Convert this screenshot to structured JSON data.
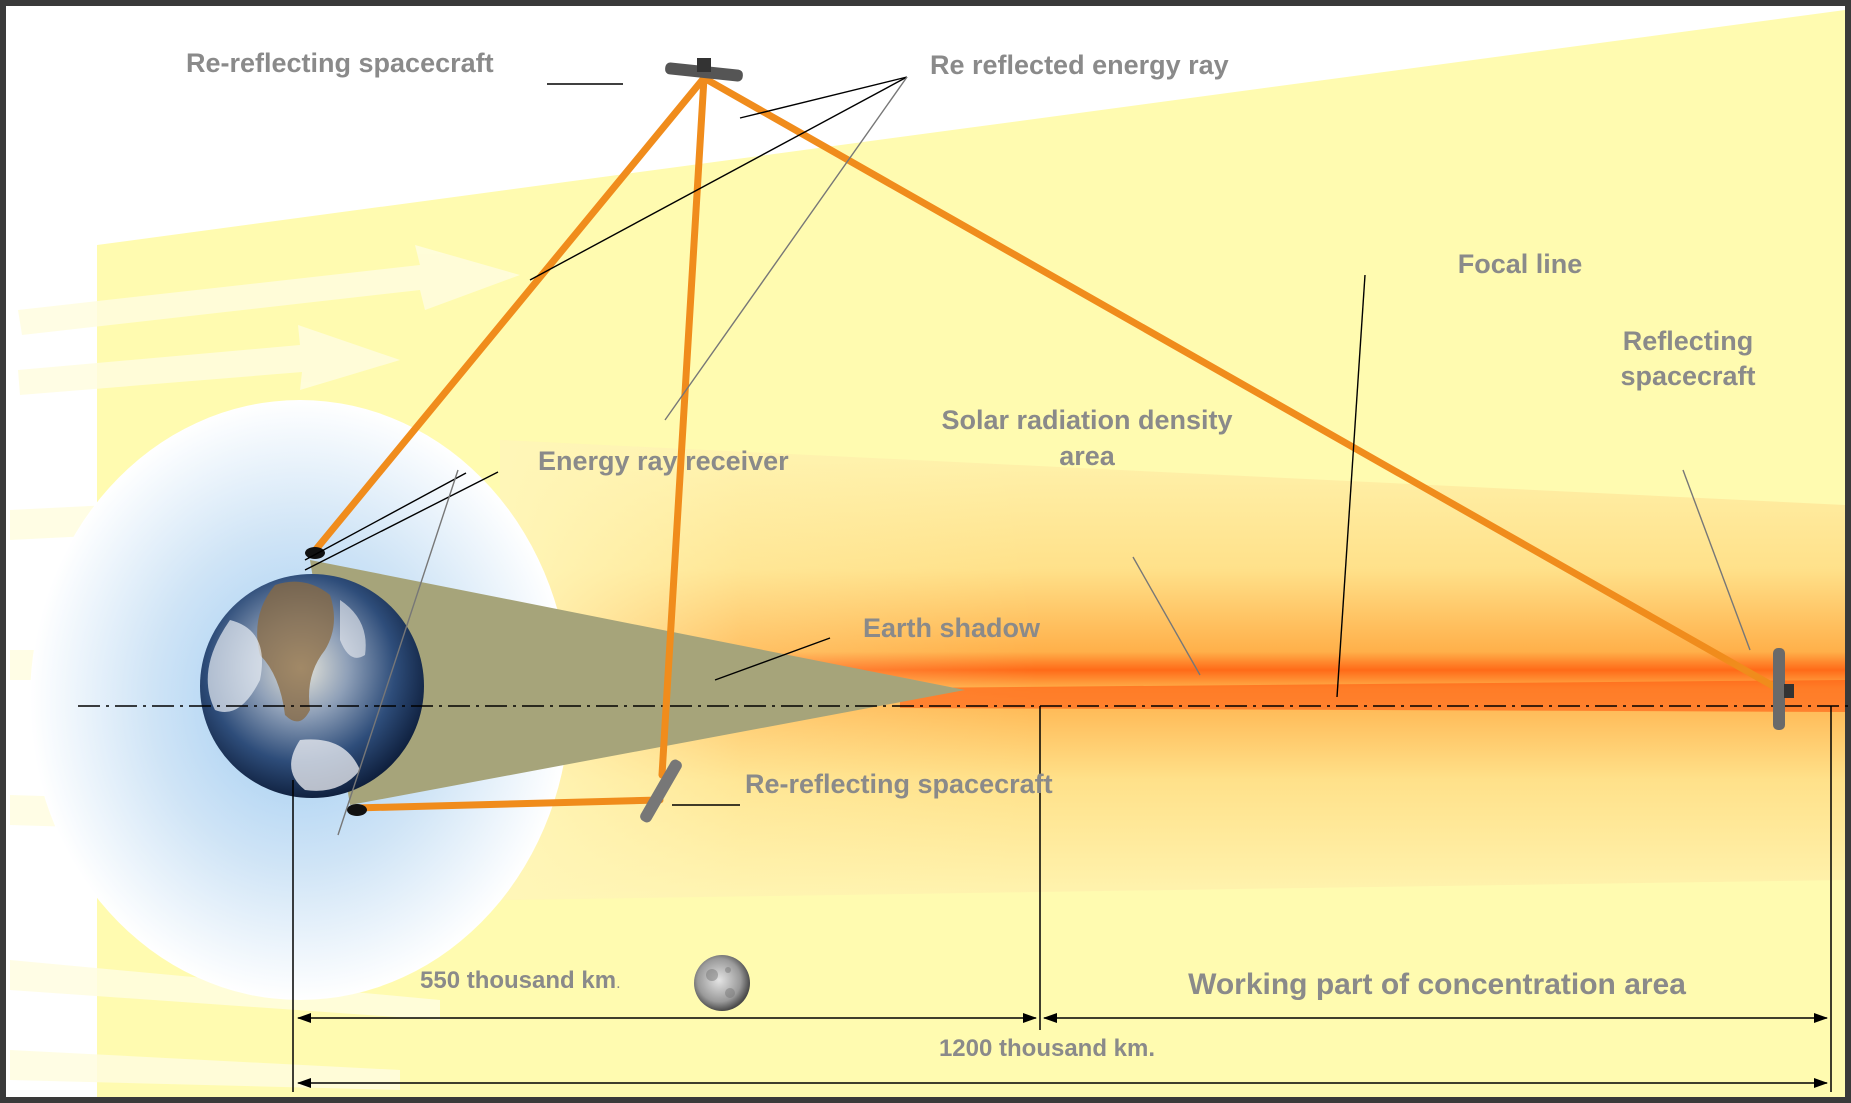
{
  "labels": {
    "rereflecting_top": "Re-reflecting spacecraft",
    "rereflected_ray": "Re reflected energy ray",
    "focal_line": "Focal line",
    "reflecting_line1": "Reflecting",
    "reflecting_line2": "spacecraft",
    "solar_density_line1": "Solar radiation density",
    "solar_density_line2": "area",
    "energy_receiver": "Energy ray receiver",
    "earth_shadow": "Earth shadow",
    "rereflecting_bottom": "Re-reflecting spacecraft",
    "distance_550": "550 thousand km",
    "distance_550_dot": ".",
    "working_part": "Working part of concentration area",
    "distance_1200": "1200 thousand km."
  },
  "colors": {
    "frame": "#3a3a3a",
    "background": "#ffffff",
    "sunlight": "#fffbb0",
    "concentration": "#ffb347",
    "focal_core": "#ff5a10",
    "ray": "#f08c1c",
    "shadow": "#a6a47a",
    "label": "#8a8a8a"
  },
  "icons": [
    "earth-icon",
    "moon-icon",
    "satellite-icon"
  ]
}
